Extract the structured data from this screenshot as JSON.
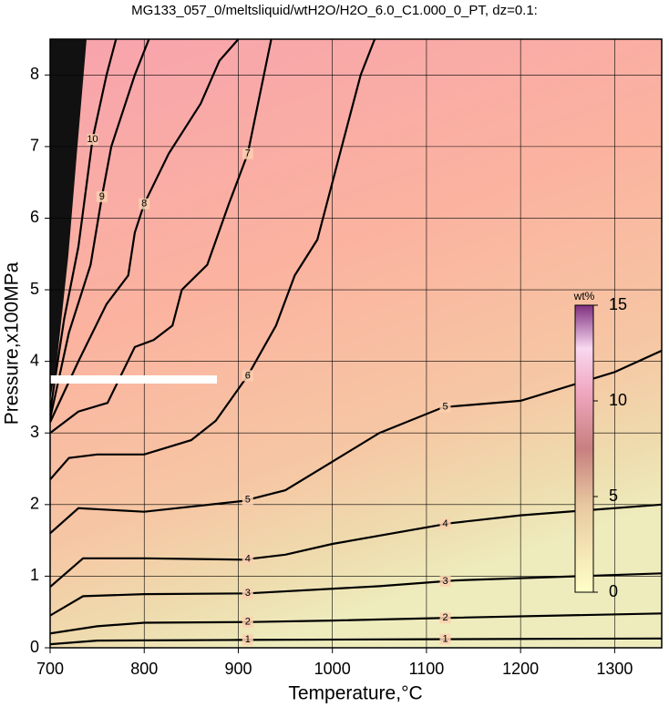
{
  "chart_data": {
    "type": "contour",
    "title": "MG133_057_0/meltsliquid/wtH2O/H2O_6.0_C1.000_0_PT, dz=0.1:",
    "x_label": "Temperature,°C",
    "y_label": "Pressure,x100MPa",
    "xlim": [
      700,
      1350
    ],
    "ylim": [
      0,
      8.5
    ],
    "xticks": [
      700,
      800,
      900,
      1000,
      1100,
      1200,
      1300
    ],
    "yticks": [
      0,
      1,
      2,
      3,
      4,
      5,
      6,
      7,
      8
    ],
    "grid": true,
    "contour_color": "#000000",
    "contours": [
      {
        "level": 1,
        "x": [
          700,
          750,
          900,
          1100,
          1350
        ],
        "y": [
          0.05,
          0.1,
          0.11,
          0.12,
          0.13
        ]
      },
      {
        "level": 2,
        "x": [
          700,
          750,
          800,
          915,
          1000,
          1130,
          1350
        ],
        "y": [
          0.2,
          0.3,
          0.35,
          0.36,
          0.38,
          0.42,
          0.48
        ]
      },
      {
        "level": 3,
        "x": [
          700,
          735,
          800,
          910,
          1050,
          1130,
          1350
        ],
        "y": [
          0.45,
          0.72,
          0.75,
          0.76,
          0.86,
          0.94,
          1.04
        ]
      },
      {
        "level": 4,
        "x": [
          700,
          735,
          800,
          905,
          950,
          1000,
          1125,
          1200,
          1350
        ],
        "y": [
          0.85,
          1.25,
          1.25,
          1.23,
          1.3,
          1.45,
          1.74,
          1.85,
          2.0
        ]
      },
      {
        "level": 5,
        "x": [
          700,
          730,
          800,
          905,
          950,
          1000,
          1050,
          1118,
          1200,
          1300,
          1350
        ],
        "y": [
          1.6,
          1.95,
          1.9,
          2.05,
          2.2,
          2.6,
          3.0,
          3.36,
          3.45,
          3.85,
          4.15
        ]
      },
      {
        "level": 6,
        "x": [
          700,
          720,
          750,
          800,
          850,
          876,
          910,
          940,
          960,
          984,
          1010,
          1030,
          1045
        ],
        "y": [
          2.35,
          2.65,
          2.7,
          2.7,
          2.9,
          3.17,
          3.8,
          4.5,
          5.2,
          5.7,
          7.0,
          8.0,
          8.5
        ]
      },
      {
        "level": 7,
        "x": [
          700,
          730,
          761,
          790,
          810,
          830,
          840,
          867,
          890,
          910,
          935
        ],
        "y": [
          3.0,
          3.3,
          3.42,
          4.2,
          4.3,
          4.5,
          5.0,
          5.35,
          6.2,
          6.9,
          8.5
        ]
      },
      {
        "level": 8,
        "x": [
          700,
          730,
          760,
          783,
          790,
          800,
          826,
          860,
          880,
          900
        ],
        "y": [
          3.15,
          4.0,
          4.8,
          5.2,
          5.8,
          6.2,
          6.9,
          7.6,
          8.2,
          8.5
        ]
      },
      {
        "level": 9,
        "x": [
          700,
          720,
          743,
          755,
          765,
          790,
          805
        ],
        "y": [
          3.2,
          4.4,
          5.35,
          6.3,
          7.0,
          8.0,
          8.5
        ]
      },
      {
        "level": 10,
        "x": [
          700,
          715,
          730,
          745,
          760,
          770
        ],
        "y": [
          3.3,
          4.6,
          5.6,
          7.1,
          8.0,
          8.5
        ]
      }
    ],
    "colorbar": {
      "label": "wt%",
      "lim": [
        0,
        15
      ],
      "ticks": [
        0,
        5,
        10,
        15
      ]
    }
  }
}
